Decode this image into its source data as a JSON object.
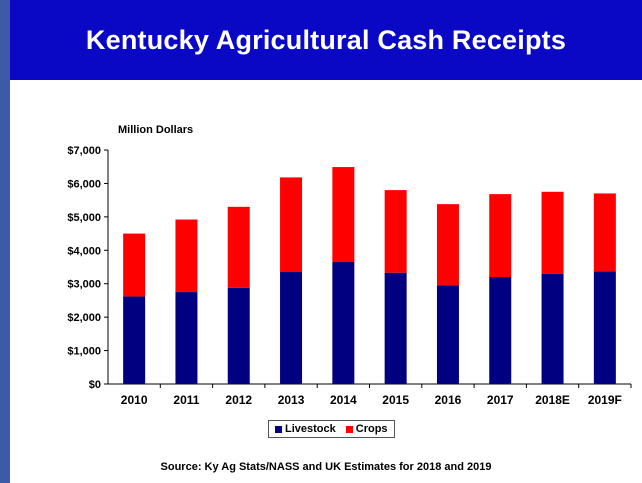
{
  "header": {
    "title": "Kentucky Agricultural Cash Receipts"
  },
  "footer": {
    "source": "Source:  Ky Ag Stats/NASS and UK Estimates for 2018 and 2019"
  },
  "colors": {
    "title_bar": "#0a08c4",
    "livestock": "#000080",
    "crops": "#ff0000"
  },
  "chart_data": {
    "type": "bar",
    "stacked": true,
    "ylabel": "Million Dollars",
    "xlabel": "",
    "ylim": [
      0,
      7000
    ],
    "yticks": [
      0,
      1000,
      2000,
      3000,
      4000,
      5000,
      6000,
      7000
    ],
    "ytick_labels": [
      "$0",
      "$1,000",
      "$2,000",
      "$3,000",
      "$4,000",
      "$5,000",
      "$6,000",
      "$7,000"
    ],
    "categories": [
      "2010",
      "2011",
      "2012",
      "2013",
      "2014",
      "2015",
      "2016",
      "2017",
      "2018E",
      "2019F"
    ],
    "series": [
      {
        "name": "Livestock",
        "color": "#000080",
        "values": [
          2620,
          2750,
          2880,
          3350,
          3650,
          3330,
          2950,
          3200,
          3300,
          3370
        ]
      },
      {
        "name": "Crops",
        "color": "#ff0000",
        "values": [
          1880,
          2170,
          2420,
          2830,
          2840,
          2470,
          2430,
          2480,
          2450,
          2330
        ]
      }
    ],
    "grid": false,
    "legend": "bottom"
  }
}
